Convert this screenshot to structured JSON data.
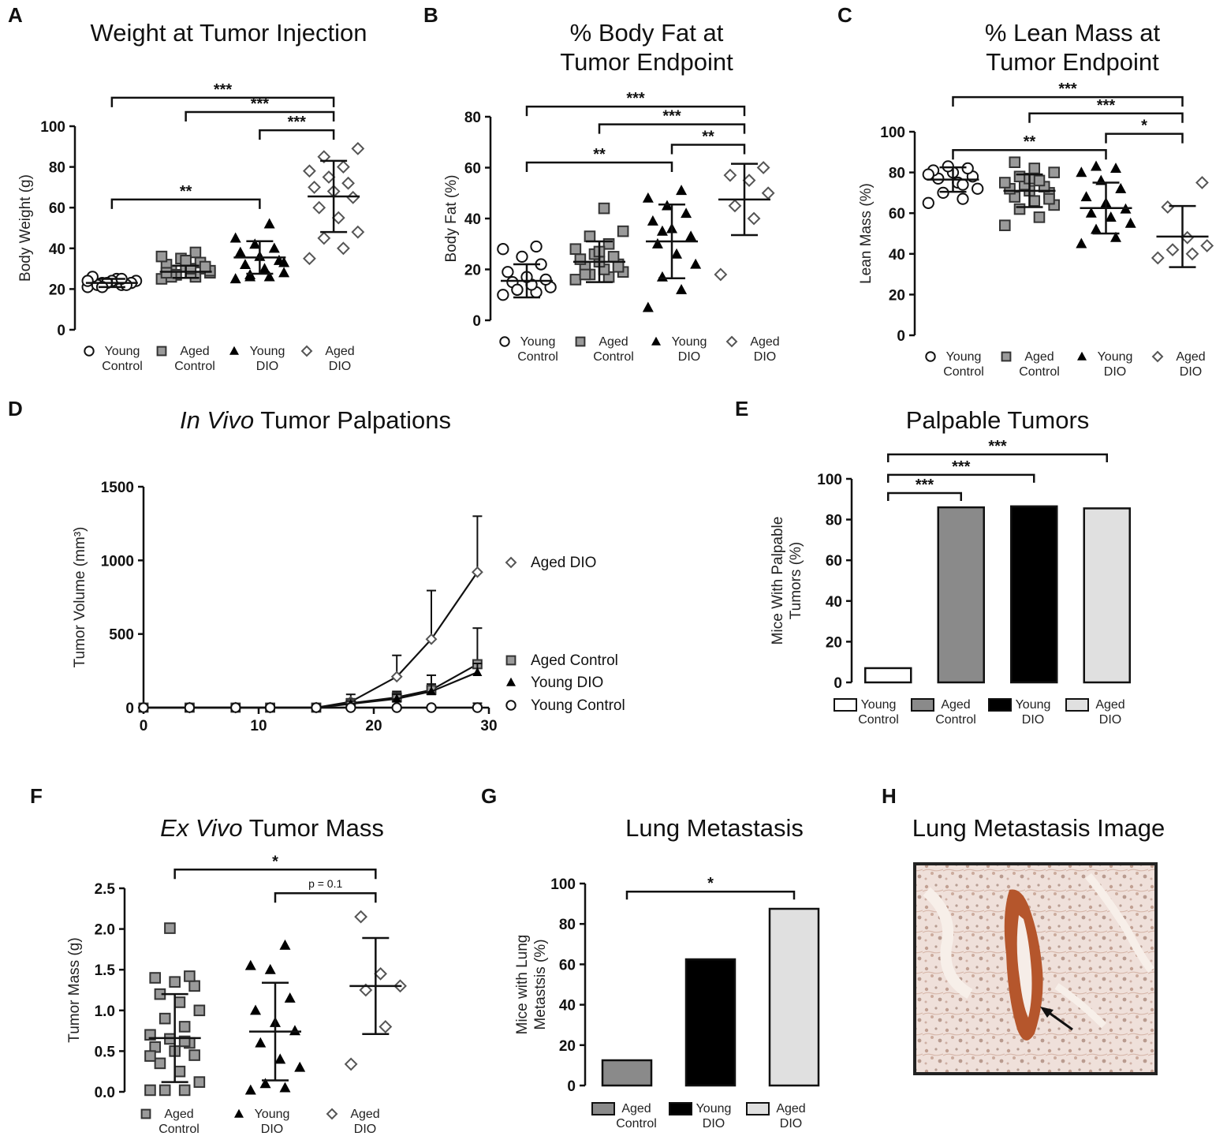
{
  "colors": {
    "young_control": "#ffffff",
    "aged_control": "#8a8a8a",
    "young_dio": "#000000",
    "aged_dio": "#e0e0e0",
    "marker_gray": "#9a9a9a",
    "ink": "#111111",
    "tissue_bg": "#e9d6cf",
    "tissue_stain": "#b5562c"
  },
  "chart_data": [
    {
      "id": "A",
      "letter": "A",
      "type": "scatter",
      "title": "Weight at Tumor Injection",
      "ylabel": "Body Weight (g)",
      "ylim": [
        0,
        100
      ],
      "yticks": [
        "0",
        "20",
        "40",
        "60",
        "80",
        "100"
      ],
      "groups": [
        {
          "label1": "Young",
          "label2": "Control",
          "marker": "circle-open",
          "mean": 23,
          "sd": 2,
          "points": [
            21,
            22,
            23,
            24,
            25,
            22,
            23,
            24,
            26,
            22,
            23,
            24,
            25,
            21
          ]
        },
        {
          "label1": "Aged",
          "label2": "Control",
          "marker": "square-gray",
          "mean": 28.5,
          "sd": 3,
          "points": [
            25,
            26,
            27,
            28,
            28,
            29,
            30,
            31,
            32,
            33,
            35,
            36,
            38,
            27,
            29,
            30,
            26,
            31,
            34,
            28
          ]
        },
        {
          "label1": "Young",
          "label2": "DIO",
          "marker": "triangle-black",
          "mean": 35.5,
          "sd": 8,
          "points": [
            25,
            26,
            27,
            28,
            30,
            32,
            34,
            36,
            38,
            40,
            42,
            45,
            52,
            26,
            33
          ]
        },
        {
          "label1": "Aged",
          "label2": "DIO",
          "marker": "diamond-open",
          "mean": 65.5,
          "sd": 17.5,
          "points": [
            35,
            40,
            45,
            48,
            55,
            60,
            65,
            68,
            70,
            72,
            75,
            78,
            80,
            85,
            89
          ]
        }
      ],
      "brackets": [
        {
          "from": 0,
          "to": 3,
          "label": "***",
          "y": 114
        },
        {
          "from": 1,
          "to": 3,
          "label": "***",
          "y": 107
        },
        {
          "from": 2,
          "to": 3,
          "label": "***",
          "y": 98
        },
        {
          "from": 0,
          "to": 2,
          "label": "**",
          "y": 64
        }
      ]
    },
    {
      "id": "B",
      "letter": "B",
      "type": "scatter",
      "title": "% Body Fat at",
      "title2": "Tumor Endpoint",
      "ylabel": "Body Fat (%)",
      "ylim": [
        0,
        80
      ],
      "yticks": [
        "0",
        "20",
        "40",
        "60",
        "80"
      ],
      "groups": [
        {
          "label1": "Young",
          "label2": "Control",
          "marker": "circle-open",
          "mean": 15.5,
          "sd": 6.5,
          "points": [
            10,
            11,
            12,
            13,
            14,
            15,
            16,
            17,
            19,
            22,
            25,
            28,
            29,
            12
          ]
        },
        {
          "label1": "Aged",
          "label2": "Control",
          "marker": "square-gray",
          "mean": 23,
          "sd": 8,
          "points": [
            16,
            17,
            18,
            19,
            20,
            21,
            22,
            23,
            24,
            25,
            26,
            28,
            30,
            33,
            35,
            44,
            18,
            21,
            27
          ]
        },
        {
          "label1": "Young",
          "label2": "DIO",
          "marker": "triangle-black",
          "mean": 31,
          "sd": 14.5,
          "points": [
            5,
            12,
            17,
            22,
            26,
            30,
            33,
            36,
            39,
            42,
            45,
            48,
            51,
            35
          ]
        },
        {
          "label1": "Aged",
          "label2": "DIO",
          "marker": "diamond-open",
          "mean": 47.5,
          "sd": 14,
          "points": [
            18,
            40,
            45,
            50,
            55,
            57,
            60
          ]
        }
      ],
      "brackets": [
        {
          "from": 0,
          "to": 3,
          "label": "***",
          "y": 84
        },
        {
          "from": 1,
          "to": 3,
          "label": "***",
          "y": 77
        },
        {
          "from": 2,
          "to": 3,
          "label": "**",
          "y": 69
        },
        {
          "from": 0,
          "to": 2,
          "label": "**",
          "y": 62
        }
      ]
    },
    {
      "id": "C",
      "letter": "C",
      "type": "scatter",
      "title": "% Lean Mass at",
      "title2": "Tumor Endpoint",
      "ylabel": "Lean Mass (%)",
      "ylim": [
        0,
        100
      ],
      "yticks": [
        "0",
        "20",
        "40",
        "60",
        "80",
        "100"
      ],
      "groups": [
        {
          "label1": "Young",
          "label2": "Control",
          "marker": "circle-open",
          "mean": 76.5,
          "sd": 6,
          "points": [
            65,
            67,
            70,
            72,
            75,
            77,
            78,
            80,
            81,
            82,
            83,
            79,
            74
          ]
        },
        {
          "label1": "Aged",
          "label2": "Control",
          "marker": "square-gray",
          "mean": 71,
          "sd": 8,
          "points": [
            54,
            58,
            62,
            64,
            66,
            68,
            70,
            71,
            72,
            73,
            74,
            75,
            76,
            78,
            80,
            82,
            85,
            67,
            77
          ]
        },
        {
          "label1": "Young",
          "label2": "DIO",
          "marker": "triangle-black",
          "mean": 62.5,
          "sd": 12.5,
          "points": [
            45,
            48,
            52,
            55,
            58,
            60,
            62,
            65,
            68,
            72,
            76,
            80,
            82,
            83
          ]
        },
        {
          "label1": "Aged",
          "label2": "DIO",
          "marker": "diamond-open",
          "mean": 48.5,
          "sd": 15,
          "points": [
            38,
            40,
            42,
            44,
            48,
            63,
            75
          ]
        }
      ],
      "brackets": [
        {
          "from": 0,
          "to": 3,
          "label": "***",
          "y": 117
        },
        {
          "from": 1,
          "to": 3,
          "label": "***",
          "y": 109
        },
        {
          "from": 2,
          "to": 3,
          "label": "*",
          "y": 99
        },
        {
          "from": 0,
          "to": 2,
          "label": "**",
          "y": 91
        }
      ]
    },
    {
      "id": "D",
      "letter": "D",
      "type": "line",
      "title_italic": "In Vivo",
      "title_rest": " Tumor Palpations",
      "ylabel": "Tumor Volume (mm³)",
      "xlim": [
        0,
        30
      ],
      "ylim": [
        0,
        1500
      ],
      "xticks": [
        "0",
        "10",
        "20",
        "30"
      ],
      "yticks": [
        "0",
        "500",
        "1000",
        "1500"
      ],
      "x": [
        0,
        4,
        8,
        11,
        15,
        18,
        22,
        25,
        29
      ],
      "series": [
        {
          "name": "Aged DIO",
          "marker": "diamond-open",
          "values": [
            0,
            0,
            0,
            0,
            0,
            40,
            210,
            465,
            920
          ],
          "err": [
            0,
            0,
            0,
            0,
            0,
            50,
            145,
            330,
            380
          ]
        },
        {
          "name": "Aged Control",
          "marker": "square-gray",
          "values": [
            0,
            0,
            0,
            0,
            0,
            30,
            70,
            120,
            295
          ],
          "err": [
            0,
            0,
            0,
            0,
            0,
            30,
            40,
            100,
            245
          ]
        },
        {
          "name": "Young DIO",
          "marker": "triangle-black",
          "values": [
            0,
            0,
            0,
            0,
            0,
            25,
            60,
            110,
            240
          ],
          "err": [
            0,
            0,
            0,
            0,
            0,
            20,
            30,
            50,
            60
          ]
        },
        {
          "name": "Young Control",
          "marker": "circle-open",
          "values": [
            0,
            0,
            0,
            0,
            0,
            0,
            0,
            0,
            0
          ],
          "err": [
            0,
            0,
            0,
            0,
            0,
            0,
            0,
            0,
            30
          ]
        }
      ]
    },
    {
      "id": "E",
      "letter": "E",
      "type": "bar",
      "title": "Palpable Tumors",
      "ylabel": "Mice With Palpable",
      "ylabel2": "Tumors (%)",
      "ylim": [
        0,
        100
      ],
      "yticks": [
        "0",
        "20",
        "40",
        "60",
        "80",
        "100"
      ],
      "categories": [
        {
          "label1": "Young",
          "label2": "Control",
          "value": 7,
          "fill": "#ffffff"
        },
        {
          "label1": "Aged",
          "label2": "Control",
          "value": 86,
          "fill": "#8a8a8a"
        },
        {
          "label1": "Young",
          "label2": "DIO",
          "value": 86.5,
          "fill": "#000000"
        },
        {
          "label1": "Aged",
          "label2": "DIO",
          "value": 85.5,
          "fill": "#e0e0e0"
        }
      ],
      "brackets": [
        {
          "from": 0,
          "to": 3,
          "label": "***",
          "y": 112
        },
        {
          "from": 0,
          "to": 2,
          "label": "***",
          "y": 102
        },
        {
          "from": 0,
          "to": 1,
          "label": "***",
          "y": 93
        }
      ]
    },
    {
      "id": "F",
      "letter": "F",
      "type": "scatter",
      "title_italic": "Ex Vivo",
      "title_rest": " Tumor Mass",
      "ylabel": "Tumor Mass (g)",
      "ylim": [
        0,
        2.5
      ],
      "yticks": [
        "0.0",
        "0.5",
        "1.0",
        "1.5",
        "2.0",
        "2.5"
      ],
      "groups": [
        {
          "label1": "Aged",
          "label2": "Control",
          "marker": "square-gray",
          "mean": 0.66,
          "sd": 0.54,
          "points": [
            0.02,
            0.02,
            0.02,
            0.12,
            0.25,
            0.35,
            0.45,
            0.5,
            0.55,
            0.6,
            0.65,
            0.7,
            0.8,
            0.9,
            1.0,
            1.1,
            1.2,
            1.3,
            1.35,
            1.4,
            1.42,
            2.01,
            0.44,
            0.62
          ]
        },
        {
          "label1": "Young",
          "label2": "DIO",
          "marker": "triangle-black",
          "mean": 0.74,
          "sd": 0.6,
          "points": [
            0.02,
            0.05,
            0.1,
            0.3,
            0.4,
            0.6,
            0.75,
            0.85,
            1.0,
            1.15,
            1.5,
            1.55,
            1.8
          ]
        },
        {
          "label1": "Aged",
          "label2": "DIO",
          "marker": "diamond-open",
          "mean": 1.3,
          "sd": 0.59,
          "points": [
            0.34,
            0.8,
            1.25,
            1.3,
            1.45,
            2.15
          ]
        }
      ],
      "brackets": [
        {
          "from": 0,
          "to": 2,
          "label": "*",
          "y": 2.73
        },
        {
          "from": 1,
          "to": 2,
          "label": "p = 0.1",
          "y": 2.44
        }
      ]
    },
    {
      "id": "G",
      "letter": "G",
      "type": "bar",
      "title": "Lung Metastasis",
      "ylabel": "Mice with Lung",
      "ylabel2": "Metastsis (%)",
      "ylim": [
        0,
        100
      ],
      "yticks": [
        "0",
        "20",
        "40",
        "60",
        "80",
        "100"
      ],
      "categories": [
        {
          "label1": "Aged",
          "label2": "Control",
          "value": 12.5,
          "fill": "#8a8a8a"
        },
        {
          "label1": "Young",
          "label2": "DIO",
          "value": 62.5,
          "fill": "#000000"
        },
        {
          "label1": "Aged",
          "label2": "DIO",
          "value": 87.5,
          "fill": "#e0e0e0"
        }
      ],
      "brackets": [
        {
          "from": 0,
          "to": 2,
          "label": "*",
          "y": 96
        }
      ]
    }
  ],
  "panel_h": {
    "letter": "H",
    "title": "Lung Metastasis Image",
    "image_alt": "lung-tissue-histology"
  }
}
